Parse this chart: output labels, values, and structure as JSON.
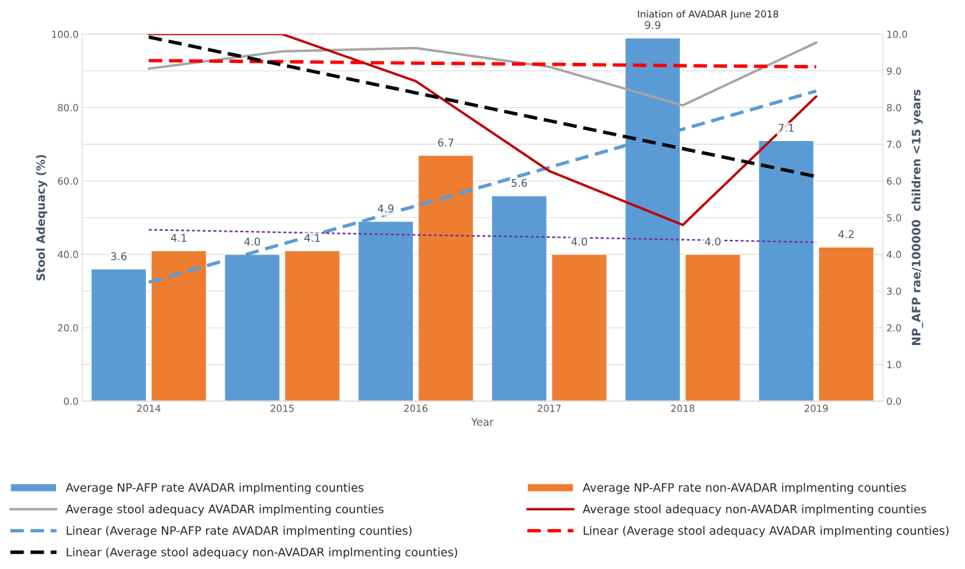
{
  "chart_data": {
    "type": "bar",
    "xlabel": "Year",
    "ylabel": "Stool Adequacy (%)",
    "y2label": "NP_AFP rae/100000  children <15 years",
    "categories": [
      "2014",
      "2015",
      "2016",
      "2017",
      "2018",
      "2019"
    ],
    "series": [
      {
        "axis": "y2",
        "name": "Average NP-AFP rate AVADAR implmenting counties",
        "color": "#5b9bd5",
        "values": [
          3.6,
          4.0,
          4.9,
          5.6,
          9.9,
          7.1
        ],
        "value_labels": [
          "3.6",
          "4.0",
          "4.9",
          "5.6",
          "9.9",
          "7.1"
        ]
      },
      {
        "axis": "y2",
        "name": "Average NP-AFP rate non-AVADAR implmenting counties",
        "color": "#ed7d31",
        "values": [
          4.1,
          4.1,
          6.7,
          4.0,
          4.0,
          4.2
        ],
        "value_labels": [
          "4.1",
          "4.1",
          "6.7",
          "4.0",
          "4.0",
          "4.2"
        ]
      },
      {
        "type": "line",
        "name": "Average stool adequacy AVADAR implmenting counties",
        "color": "#a5a5a5",
        "line_style": "solid",
        "values": [
          90.6,
          95.3,
          96.2,
          91.1,
          80.6,
          97.7
        ]
      },
      {
        "type": "line",
        "name": "Average stool adequacy non-AVADAR implmenting counties",
        "color": "#c00000",
        "line_style": "solid",
        "values": [
          100.0,
          100.0,
          87.2,
          62.7,
          48.0,
          83.0
        ]
      },
      {
        "type": "line",
        "axis": "y2",
        "name": "Linear (Average NP-AFP rate AVADAR implmenting counties)",
        "color": "#5b9bd5",
        "line_style": "dashed",
        "values": [
          3.24,
          4.28,
          5.32,
          6.37,
          7.41,
          8.45
        ]
      },
      {
        "type": "line",
        "name": "Linear (Average stool adequacy AVADAR implmenting counties)",
        "color": "#ff0000",
        "line_style": "dashed",
        "values": [
          92.8,
          92.5,
          92.1,
          91.8,
          91.4,
          91.1
        ]
      },
      {
        "type": "line",
        "name": "Linear (Average stool adequacy non-AVADAR implmenting counties)",
        "color": "#000000",
        "line_style": "dashed",
        "values": [
          99.2,
          91.6,
          84.0,
          76.4,
          68.8,
          61.2
        ]
      },
      {
        "type": "line",
        "axis": "y2",
        "color": "#7030a0",
        "line_style": "dotted",
        "values": [
          4.67,
          4.6,
          4.53,
          4.47,
          4.4,
          4.33
        ]
      }
    ],
    "ylim": [
      0,
      100
    ],
    "yticks": [
      {
        "value": 0,
        "label": "0.0"
      },
      {
        "value": 20,
        "label": "20.0"
      },
      {
        "value": 40,
        "label": "40.0"
      },
      {
        "value": 60,
        "label": "60.0"
      },
      {
        "value": 80,
        "label": "80.0"
      },
      {
        "value": 100,
        "label": "100.0"
      }
    ],
    "y2lim": [
      0,
      10
    ],
    "y2ticks": [
      {
        "value": 0,
        "label": "0.0"
      },
      {
        "value": 1,
        "label": "1.0"
      },
      {
        "value": 2,
        "label": "2.0"
      },
      {
        "value": 3,
        "label": "3.0"
      },
      {
        "value": 4,
        "label": "4.0"
      },
      {
        "value": 5,
        "label": "5.0"
      },
      {
        "value": 6,
        "label": "6.0"
      },
      {
        "value": 7,
        "label": "7.0"
      },
      {
        "value": 8,
        "label": "8.0"
      },
      {
        "value": 9,
        "label": "9.0"
      },
      {
        "value": 10,
        "label": "10.0"
      }
    ],
    "grid": "y",
    "legend": "bottom",
    "annotations": [
      "Iniation of AVADAR June 2018"
    ]
  }
}
